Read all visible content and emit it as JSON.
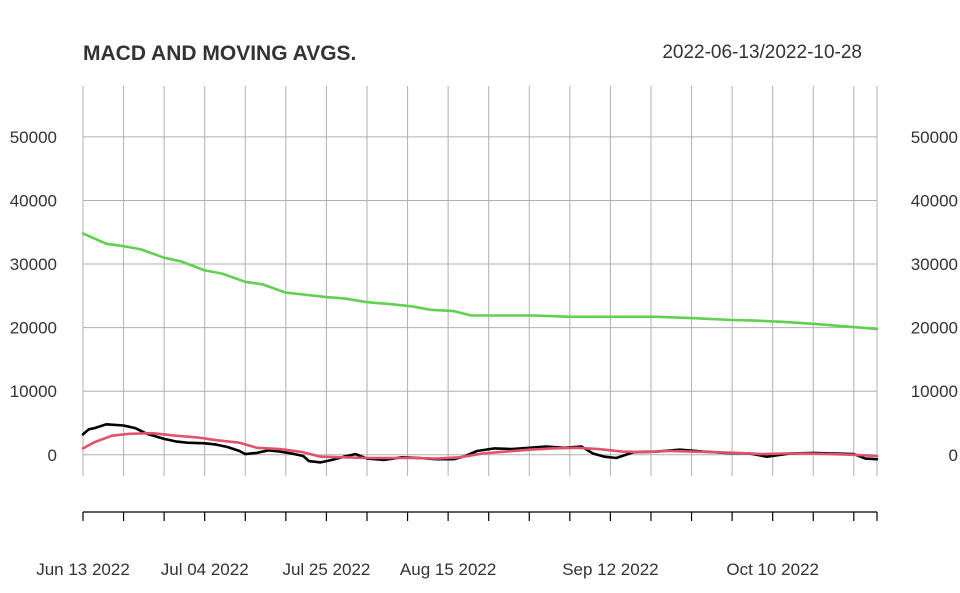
{
  "chart_data": {
    "type": "line",
    "title": "MACD AND MOVING AVGS.",
    "date_range": "2022-06-13/2022-10-28",
    "ylim": [
      -9000,
      58000
    ],
    "y_ticks": [
      0,
      10000,
      20000,
      30000,
      40000,
      50000
    ],
    "y_tick_labels": [
      "0",
      "10000",
      "20000",
      "30000",
      "40000",
      "50000"
    ],
    "x_range": [
      "2022-06-13",
      "2022-10-28"
    ],
    "x_tick_labels": [
      {
        "date": "2022-06-13",
        "label": "Jun 13 2022"
      },
      {
        "date": "2022-07-04",
        "label": "Jul 04 2022"
      },
      {
        "date": "2022-07-25",
        "label": "Jul 25 2022"
      },
      {
        "date": "2022-08-15",
        "label": "Aug 15 2022"
      },
      {
        "date": "2022-09-12",
        "label": "Sep 12 2022"
      },
      {
        "date": "2022-10-10",
        "label": "Oct 10 2022"
      }
    ],
    "grid": true,
    "series": [
      {
        "color": "#61D04F",
        "points": [
          [
            "2022-06-13",
            34800
          ],
          [
            "2022-06-15",
            34000
          ],
          [
            "2022-06-17",
            33200
          ],
          [
            "2022-06-20",
            32800
          ],
          [
            "2022-06-23",
            32300
          ],
          [
            "2022-06-27",
            31000
          ],
          [
            "2022-06-30",
            30400
          ],
          [
            "2022-07-04",
            29000
          ],
          [
            "2022-07-07",
            28500
          ],
          [
            "2022-07-11",
            27200
          ],
          [
            "2022-07-14",
            26800
          ],
          [
            "2022-07-18",
            25500
          ],
          [
            "2022-07-21",
            25200
          ],
          [
            "2022-07-25",
            24800
          ],
          [
            "2022-07-28",
            24600
          ],
          [
            "2022-08-01",
            24000
          ],
          [
            "2022-08-05",
            23700
          ],
          [
            "2022-08-09",
            23300
          ],
          [
            "2022-08-12",
            22800
          ],
          [
            "2022-08-16",
            22600
          ],
          [
            "2022-08-19",
            21900
          ],
          [
            "2022-08-25",
            21900
          ],
          [
            "2022-08-30",
            21900
          ],
          [
            "2022-09-05",
            21700
          ],
          [
            "2022-09-12",
            21700
          ],
          [
            "2022-09-20",
            21700
          ],
          [
            "2022-09-26",
            21500
          ],
          [
            "2022-10-03",
            21200
          ],
          [
            "2022-10-07",
            21100
          ],
          [
            "2022-10-12",
            20900
          ],
          [
            "2022-10-17",
            20600
          ],
          [
            "2022-10-21",
            20300
          ],
          [
            "2022-10-25",
            20000
          ],
          [
            "2022-10-28",
            19800
          ]
        ]
      },
      {
        "color": "#000000",
        "points": [
          [
            "2022-06-13",
            3200
          ],
          [
            "2022-06-14",
            4000
          ],
          [
            "2022-06-15",
            4200
          ],
          [
            "2022-06-17",
            4800
          ],
          [
            "2022-06-20",
            4600
          ],
          [
            "2022-06-22",
            4200
          ],
          [
            "2022-06-24",
            3300
          ],
          [
            "2022-06-27",
            2500
          ],
          [
            "2022-06-29",
            2100
          ],
          [
            "2022-07-01",
            1900
          ],
          [
            "2022-07-04",
            1800
          ],
          [
            "2022-07-06",
            1600
          ],
          [
            "2022-07-08",
            1200
          ],
          [
            "2022-07-10",
            600
          ],
          [
            "2022-07-11",
            100
          ],
          [
            "2022-07-13",
            300
          ],
          [
            "2022-07-15",
            700
          ],
          [
            "2022-07-17",
            500
          ],
          [
            "2022-07-19",
            200
          ],
          [
            "2022-07-21",
            -200
          ],
          [
            "2022-07-22",
            -1000
          ],
          [
            "2022-07-24",
            -1200
          ],
          [
            "2022-07-26",
            -800
          ],
          [
            "2022-07-28",
            -300
          ],
          [
            "2022-07-30",
            100
          ],
          [
            "2022-08-01",
            -600
          ],
          [
            "2022-08-04",
            -800
          ],
          [
            "2022-08-07",
            -400
          ],
          [
            "2022-08-10",
            -500
          ],
          [
            "2022-08-13",
            -700
          ],
          [
            "2022-08-16",
            -700
          ],
          [
            "2022-08-18",
            -200
          ],
          [
            "2022-08-20",
            600
          ],
          [
            "2022-08-23",
            1000
          ],
          [
            "2022-08-26",
            900
          ],
          [
            "2022-08-29",
            1100
          ],
          [
            "2022-09-01",
            1300
          ],
          [
            "2022-09-04",
            1100
          ],
          [
            "2022-09-07",
            1300
          ],
          [
            "2022-09-09",
            200
          ],
          [
            "2022-09-11",
            -300
          ],
          [
            "2022-09-13",
            -500
          ],
          [
            "2022-09-16",
            400
          ],
          [
            "2022-09-20",
            500
          ],
          [
            "2022-09-24",
            800
          ],
          [
            "2022-09-28",
            500
          ],
          [
            "2022-10-02",
            300
          ],
          [
            "2022-10-06",
            200
          ],
          [
            "2022-10-09",
            -300
          ],
          [
            "2022-10-13",
            200
          ],
          [
            "2022-10-17",
            300
          ],
          [
            "2022-10-21",
            200
          ],
          [
            "2022-10-24",
            100
          ],
          [
            "2022-10-26",
            -600
          ],
          [
            "2022-10-28",
            -700
          ]
        ]
      },
      {
        "color": "#DF536B",
        "points": [
          [
            "2022-06-13",
            1000
          ],
          [
            "2022-06-15",
            2000
          ],
          [
            "2022-06-18",
            3000
          ],
          [
            "2022-06-21",
            3300
          ],
          [
            "2022-06-25",
            3400
          ],
          [
            "2022-06-29",
            3000
          ],
          [
            "2022-07-03",
            2700
          ],
          [
            "2022-07-06",
            2300
          ],
          [
            "2022-07-10",
            1900
          ],
          [
            "2022-07-13",
            1100
          ],
          [
            "2022-07-17",
            900
          ],
          [
            "2022-07-21",
            400
          ],
          [
            "2022-07-24",
            -300
          ],
          [
            "2022-07-28",
            -400
          ],
          [
            "2022-08-01",
            -500
          ],
          [
            "2022-08-05",
            -500
          ],
          [
            "2022-08-09",
            -500
          ],
          [
            "2022-08-13",
            -600
          ],
          [
            "2022-08-17",
            -400
          ],
          [
            "2022-08-21",
            200
          ],
          [
            "2022-08-25",
            500
          ],
          [
            "2022-08-29",
            800
          ],
          [
            "2022-09-02",
            1000
          ],
          [
            "2022-09-06",
            1100
          ],
          [
            "2022-09-10",
            900
          ],
          [
            "2022-09-14",
            500
          ],
          [
            "2022-09-18",
            400
          ],
          [
            "2022-09-22",
            600
          ],
          [
            "2022-09-26",
            500
          ],
          [
            "2022-09-30",
            400
          ],
          [
            "2022-10-04",
            300
          ],
          [
            "2022-10-08",
            100
          ],
          [
            "2022-10-12",
            200
          ],
          [
            "2022-10-16",
            200
          ],
          [
            "2022-10-20",
            100
          ],
          [
            "2022-10-24",
            0
          ],
          [
            "2022-10-28",
            -200
          ]
        ]
      }
    ]
  }
}
